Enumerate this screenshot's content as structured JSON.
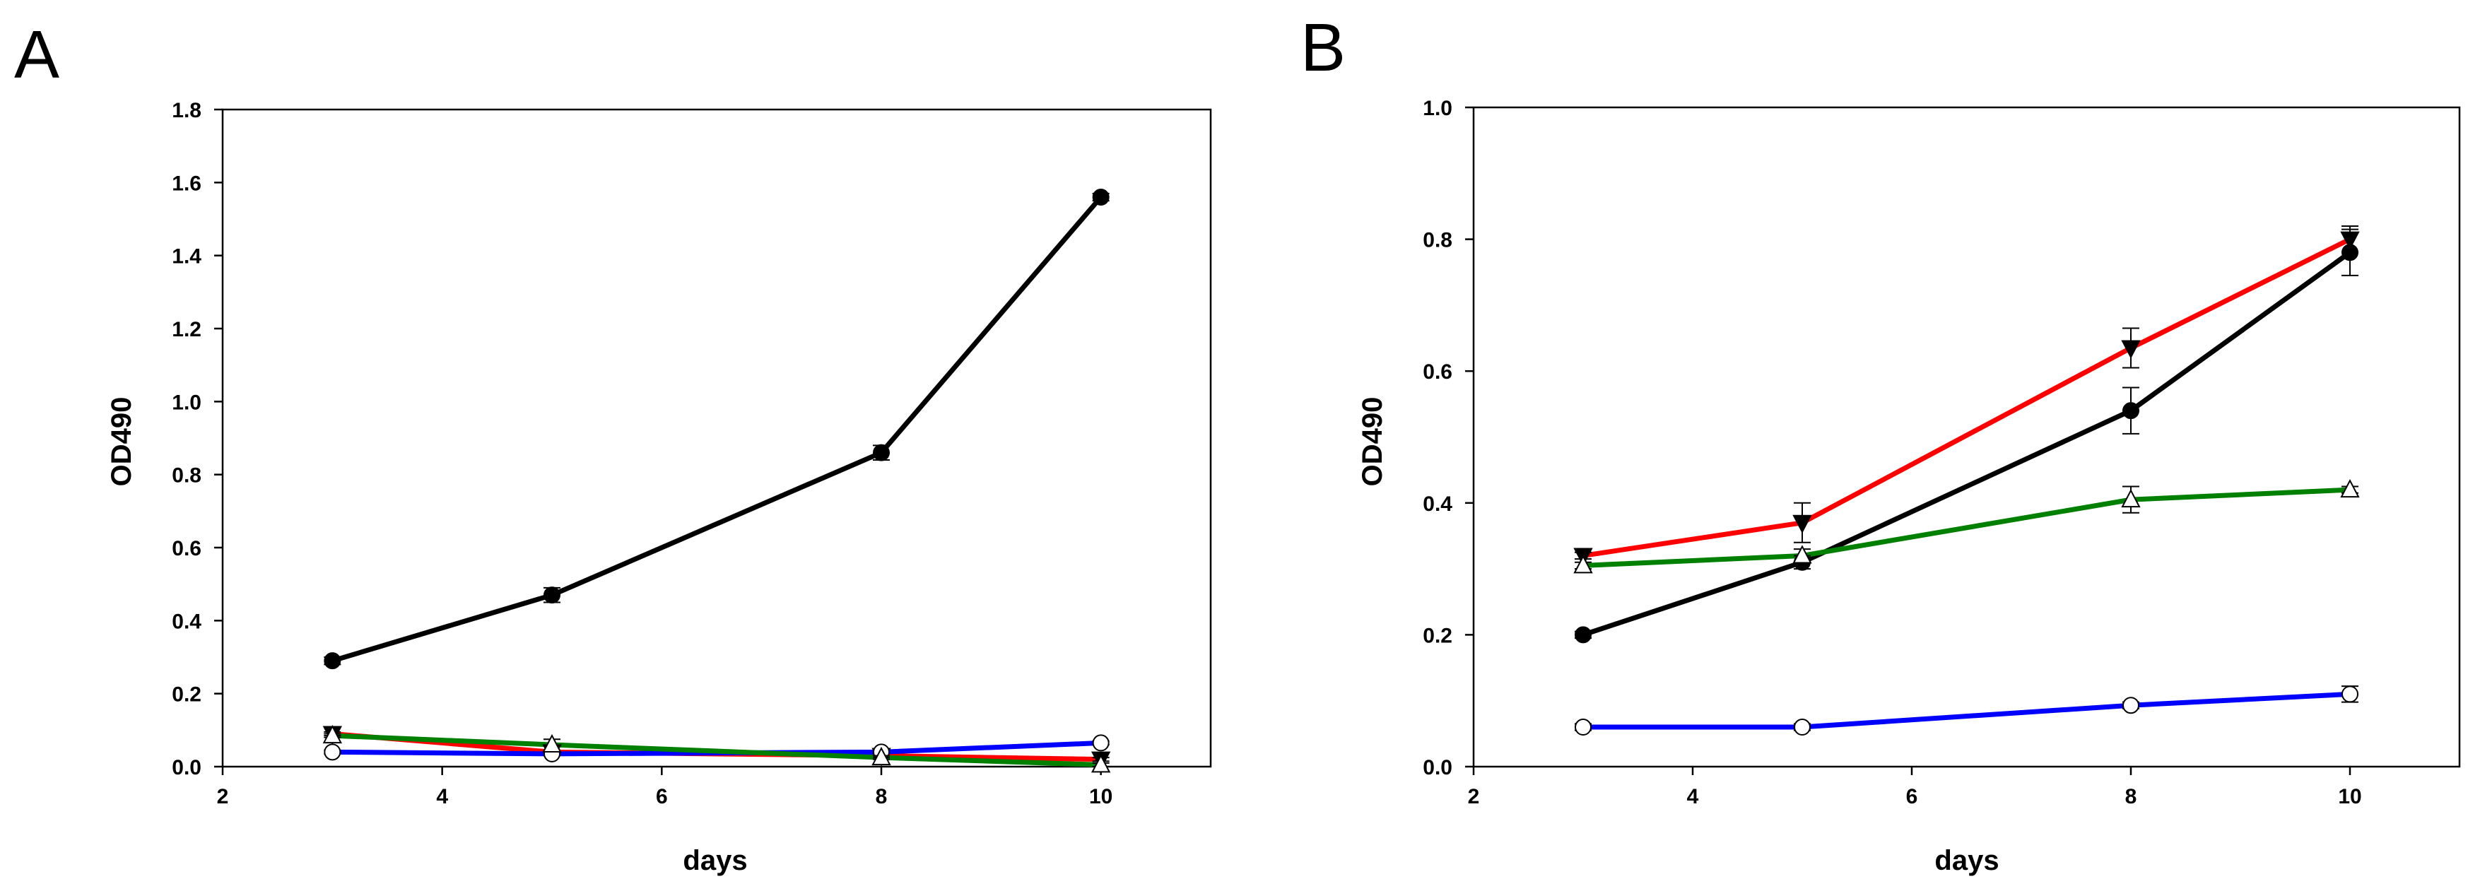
{
  "chart_data": [
    {
      "panel_label": "A",
      "type": "line",
      "xlabel": "days",
      "ylabel": "OD490",
      "xlim": [
        2,
        11
      ],
      "ylim": [
        0,
        1.8
      ],
      "xticks": [
        2,
        4,
        6,
        8,
        10
      ],
      "yticks": [
        0.0,
        0.2,
        0.4,
        0.6,
        0.8,
        1.0,
        1.2,
        1.4,
        1.6,
        1.8
      ],
      "xtick_labels": [
        "2",
        "4",
        "6",
        "8",
        "10"
      ],
      "ytick_labels": [
        "0.0",
        "0.2",
        "0.4",
        "0.6",
        "0.8",
        "1.0",
        "1.2",
        "1.4",
        "1.6",
        "1.8"
      ],
      "x": [
        3,
        5,
        8,
        10
      ],
      "series": [
        {
          "name": "black-filled-circle",
          "color": "#000000",
          "marker": "filled-circle",
          "values": [
            0.29,
            0.47,
            0.86,
            1.56
          ],
          "errors": [
            0.01,
            0.02,
            0.02,
            0.01
          ]
        },
        {
          "name": "red-filled-triangle-down",
          "color": "#ff0000",
          "marker": "filled-triangle-down",
          "values": [
            0.09,
            0.04,
            0.03,
            0.02
          ],
          "errors": [
            0.005,
            0.005,
            0.005,
            0.005
          ]
        },
        {
          "name": "blue-open-circle",
          "color": "#0000ff",
          "marker": "open-circle",
          "values": [
            0.04,
            0.035,
            0.04,
            0.065
          ],
          "errors": [
            0.005,
            0.005,
            0.005,
            0.005
          ]
        },
        {
          "name": "green-open-triangle",
          "color": "#008000",
          "marker": "open-triangle",
          "values": [
            0.085,
            0.06,
            0.025,
            0.005
          ],
          "errors": [
            0.005,
            0.015,
            0.005,
            0.005
          ]
        }
      ]
    },
    {
      "panel_label": "B",
      "type": "line",
      "xlabel": "days",
      "ylabel": "OD490",
      "xlim": [
        2,
        11
      ],
      "ylim": [
        0,
        1.0
      ],
      "xticks": [
        2,
        4,
        6,
        8,
        10
      ],
      "yticks": [
        0.0,
        0.2,
        0.4,
        0.6,
        0.8,
        1.0
      ],
      "xtick_labels": [
        "2",
        "4",
        "6",
        "8",
        "10"
      ],
      "ytick_labels": [
        "0.0",
        "0.2",
        "0.4",
        "0.6",
        "0.8",
        "1.0"
      ],
      "x": [
        3,
        5,
        8,
        10
      ],
      "series": [
        {
          "name": "red-filled-triangle-down",
          "color": "#ff0000",
          "marker": "filled-triangle-down",
          "values": [
            0.32,
            0.37,
            0.635,
            0.8
          ],
          "errors": [
            0.005,
            0.03,
            0.03,
            0.02
          ]
        },
        {
          "name": "black-filled-circle",
          "color": "#000000",
          "marker": "filled-circle",
          "values": [
            0.2,
            0.31,
            0.54,
            0.78
          ],
          "errors": [
            0.005,
            0.01,
            0.035,
            0.035
          ]
        },
        {
          "name": "green-open-triangle",
          "color": "#008000",
          "marker": "open-triangle",
          "values": [
            0.305,
            0.32,
            0.405,
            0.42
          ],
          "errors": [
            0.005,
            0.01,
            0.02,
            0.005
          ]
        },
        {
          "name": "blue-open-circle",
          "color": "#0000ff",
          "marker": "open-circle",
          "values": [
            0.06,
            0.06,
            0.093,
            0.11
          ],
          "errors": [
            0.005,
            0.005,
            0.005,
            0.012
          ]
        }
      ]
    }
  ]
}
